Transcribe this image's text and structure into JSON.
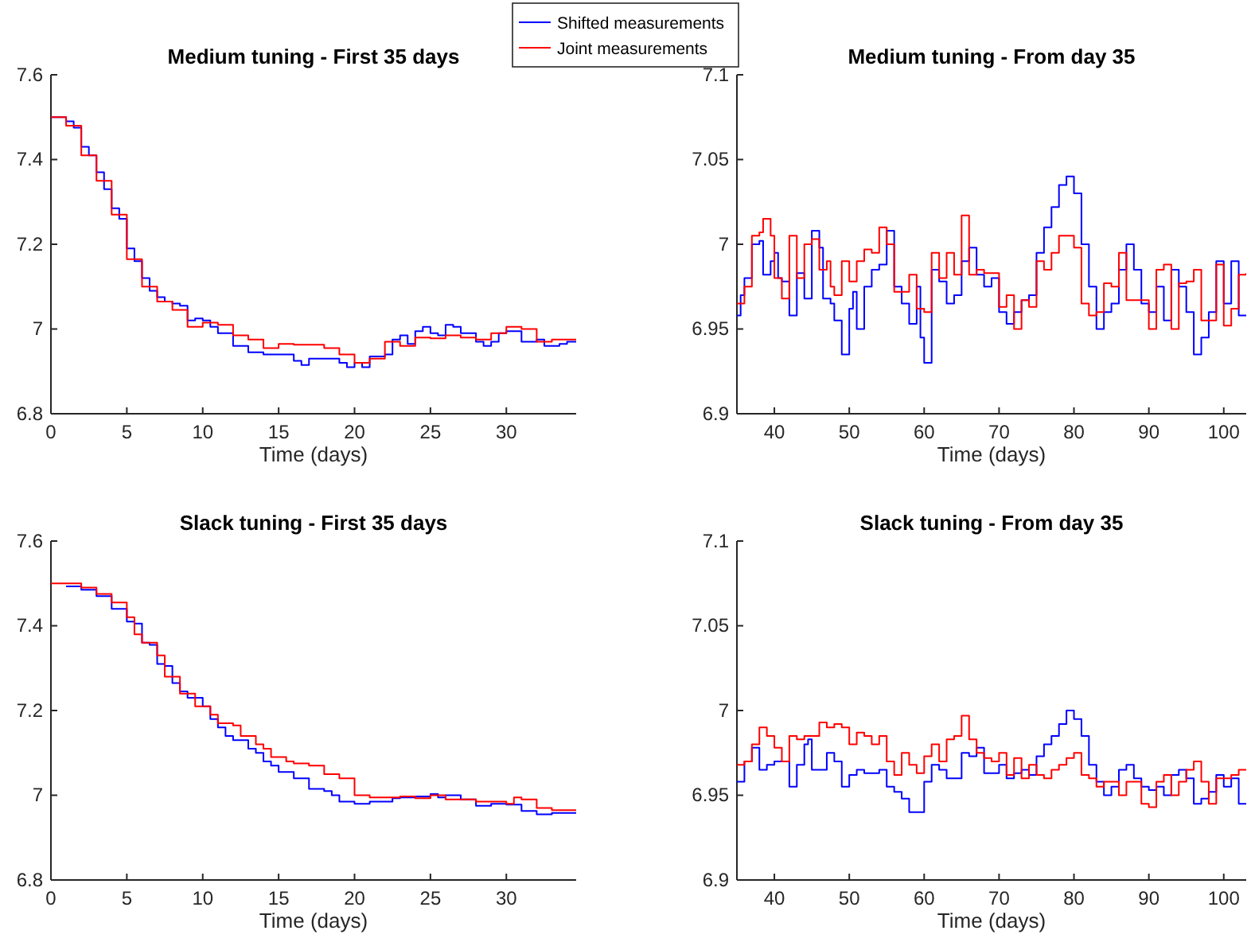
{
  "chart_data": [
    {
      "type": "step",
      "title": "Medium tuning - First 35 days",
      "xlabel": "Time (days)",
      "xlim": [
        0,
        34.6
      ],
      "xticks": [
        0,
        5,
        10,
        15,
        20,
        25,
        30
      ],
      "ylim": [
        6.8,
        7.6
      ],
      "yticks": [
        6.8,
        7,
        7.2,
        7.4,
        7.6
      ],
      "legend": "top right",
      "series": [
        {
          "name": "Shifted measurements",
          "color": "#0000ff",
          "x": [
            0,
            1,
            1.5,
            2,
            2.5,
            3,
            3.5,
            4,
            4.5,
            5,
            5.5,
            6,
            6.5,
            7,
            7.5,
            8,
            8.5,
            9,
            9.5,
            10,
            10.5,
            11,
            12,
            13,
            14,
            15,
            16,
            16.5,
            17,
            18,
            19,
            19.5,
            20,
            20.5,
            21,
            22,
            22.5,
            23,
            23.5,
            24,
            24.5,
            25,
            25.5,
            26,
            26.5,
            27,
            28,
            28.5,
            29,
            29.5,
            30,
            31,
            32,
            32.5,
            33.5,
            34,
            34.6
          ],
          "values": [
            7.5,
            7.49,
            7.475,
            7.43,
            7.41,
            7.37,
            7.33,
            7.285,
            7.26,
            7.19,
            7.16,
            7.12,
            7.09,
            7.075,
            7.065,
            7.06,
            7.055,
            7.02,
            7.025,
            7.02,
            7.005,
            6.99,
            6.96,
            6.945,
            6.94,
            6.94,
            6.925,
            6.915,
            6.93,
            6.93,
            6.92,
            6.91,
            6.92,
            6.91,
            6.935,
            6.94,
            6.975,
            6.985,
            6.965,
            6.995,
            7.005,
            6.99,
            6.985,
            7.01,
            7.005,
            6.99,
            6.97,
            6.96,
            6.97,
            6.99,
            6.995,
            6.97,
            6.975,
            6.96,
            6.965,
            6.97,
            6.97
          ]
        },
        {
          "name": "Joint measurements",
          "color": "#ff0000",
          "x": [
            0,
            1,
            2,
            3,
            4,
            5,
            6,
            7,
            8,
            9,
            10,
            11,
            12,
            13,
            14,
            15,
            16,
            18,
            19,
            20,
            21,
            22,
            23,
            24,
            25,
            26,
            27,
            28,
            29,
            30,
            31,
            32,
            33,
            34.6
          ],
          "values": [
            7.5,
            7.48,
            7.41,
            7.35,
            7.27,
            7.165,
            7.1,
            7.065,
            7.045,
            7.005,
            7.015,
            7.01,
            6.985,
            6.975,
            6.955,
            6.965,
            6.963,
            6.955,
            6.94,
            6.92,
            6.93,
            6.97,
            6.96,
            6.98,
            6.978,
            6.985,
            6.98,
            6.975,
            6.99,
            7.005,
            7,
            6.97,
            6.975,
            6.975
          ]
        }
      ]
    },
    {
      "type": "step",
      "title": "Medium tuning - From day 35",
      "xlabel": "Time (days)",
      "xlim": [
        35,
        103
      ],
      "xticks": [
        40,
        50,
        60,
        70,
        80,
        90,
        100
      ],
      "ylim": [
        6.9,
        7.1
      ],
      "yticks": [
        6.9,
        6.95,
        7,
        7.05,
        7.1
      ],
      "series": [
        {
          "color": "#0000ff",
          "x": [
            35,
            35.5,
            36,
            37,
            38,
            38.5,
            39.5,
            40,
            40.5,
            41,
            42,
            43,
            44,
            45,
            46,
            46.5,
            47.5,
            48,
            49,
            50,
            50.5,
            51,
            52,
            53,
            54,
            55,
            56,
            57,
            58,
            59,
            59.5,
            60,
            61,
            62,
            63,
            64,
            65,
            66,
            67,
            68,
            69,
            70,
            71,
            72,
            73,
            74,
            75,
            76,
            77,
            78,
            79,
            80,
            81,
            82,
            83,
            84,
            85,
            86,
            87,
            88,
            89,
            90,
            91,
            92,
            93,
            94,
            95,
            96,
            97,
            98,
            99,
            100,
            101,
            102,
            103
          ],
          "values": [
            6.958,
            6.97,
            6.98,
            7,
            7.002,
            6.982,
            6.99,
            6.995,
            6.98,
            6.978,
            6.958,
            6.983,
            6.968,
            7.008,
            6.998,
            6.968,
            6.965,
            6.955,
            6.935,
            6.962,
            6.972,
            6.95,
            6.975,
            6.985,
            6.988,
            7.008,
            6.975,
            6.965,
            6.953,
            6.975,
            6.945,
            6.93,
            6.985,
            6.978,
            6.965,
            6.97,
            6.99,
            6.998,
            6.982,
            6.975,
            6.98,
            6.96,
            6.953,
            6.96,
            6.967,
            6.97,
            6.995,
            7.01,
            7.022,
            7.035,
            7.04,
            7.03,
            7,
            6.975,
            6.95,
            6.96,
            6.965,
            6.985,
            7,
            6.985,
            6.965,
            6.96,
            6.975,
            6.955,
            6.985,
            6.975,
            6.96,
            6.935,
            6.945,
            6.96,
            6.99,
            6.965,
            6.99,
            6.958,
            6.958
          ]
        },
        {
          "color": "#ff0000",
          "x": [
            35,
            36,
            37,
            38,
            38.5,
            39.5,
            40,
            41,
            42,
            43,
            44,
            45,
            46,
            47,
            47.5,
            48,
            49,
            50,
            51,
            52,
            53,
            54,
            55,
            56,
            57,
            58,
            59,
            60,
            61,
            62,
            63,
            64,
            65,
            66,
            67,
            68,
            69,
            70,
            71,
            72,
            73,
            74,
            75,
            76,
            77,
            78,
            79,
            80,
            81,
            82,
            83,
            84,
            85,
            86,
            87,
            88,
            89,
            90,
            91,
            92,
            93,
            94,
            95,
            96,
            97,
            98,
            99,
            100,
            101,
            102,
            103
          ],
          "values": [
            6.965,
            6.975,
            7.005,
            7.007,
            7.015,
            7.005,
            6.98,
            6.968,
            7.005,
            6.98,
            7,
            7.003,
            6.985,
            6.99,
            6.975,
            6.97,
            6.99,
            6.978,
            6.99,
            6.997,
            6.995,
            7.01,
            7,
            6.972,
            6.972,
            6.982,
            6.962,
            6.96,
            6.995,
            6.98,
            6.995,
            6.982,
            7.017,
            6.982,
            6.985,
            6.983,
            6.983,
            6.963,
            6.97,
            6.95,
            6.967,
            6.963,
            6.99,
            6.985,
            6.995,
            7.005,
            7.005,
            6.998,
            6.965,
            6.958,
            6.96,
            6.977,
            6.975,
            6.995,
            6.967,
            6.967,
            6.967,
            6.95,
            6.985,
            6.988,
            6.95,
            6.977,
            6.978,
            6.985,
            6.955,
            6.955,
            6.988,
            6.952,
            6.962,
            6.982,
            6.983
          ]
        }
      ]
    },
    {
      "type": "step",
      "title": "Slack tuning - First 35 days",
      "xlabel": "Time (days)",
      "xlim": [
        0,
        34.6
      ],
      "xticks": [
        0,
        5,
        10,
        15,
        20,
        25,
        30
      ],
      "ylim": [
        6.8,
        7.6
      ],
      "yticks": [
        6.8,
        7,
        7.2,
        7.4,
        7.6
      ],
      "series": [
        {
          "color": "#0000ff",
          "x": [
            1,
            2,
            3,
            4,
            5,
            5.5,
            6,
            6.5,
            7,
            7.5,
            8,
            8.5,
            9,
            10,
            10.5,
            11,
            11.5,
            12,
            13,
            13.5,
            14,
            14.5,
            15,
            16,
            17,
            18,
            18.5,
            19,
            20,
            21,
            22,
            22.5,
            23,
            24,
            25,
            25.5,
            26,
            27,
            28,
            29,
            30,
            31,
            32,
            33,
            34.6
          ],
          "values": [
            7.493,
            7.485,
            7.47,
            7.44,
            7.41,
            7.405,
            7.36,
            7.355,
            7.31,
            7.305,
            7.265,
            7.245,
            7.23,
            7.21,
            7.18,
            7.16,
            7.14,
            7.13,
            7.11,
            7.1,
            7.08,
            7.07,
            7.055,
            7.04,
            7.015,
            7.01,
            7,
            6.985,
            6.98,
            6.985,
            6.985,
            6.993,
            6.995,
            6.997,
            7.003,
            6.995,
            7,
            6.99,
            6.975,
            6.98,
            6.978,
            6.963,
            6.955,
            6.958,
            6.958
          ]
        },
        {
          "color": "#ff0000",
          "x": [
            0,
            1,
            2,
            3,
            4,
            5,
            5.5,
            6,
            7,
            7.5,
            8,
            8.5,
            9,
            9.5,
            10.5,
            11,
            12,
            12.5,
            13.5,
            14,
            14.5,
            15.5,
            16,
            17,
            18,
            19,
            20,
            21,
            22,
            23,
            24,
            25,
            26,
            27,
            28,
            29,
            30,
            30.5,
            31,
            32,
            33,
            34.6
          ],
          "values": [
            7.5,
            7.5,
            7.49,
            7.475,
            7.455,
            7.42,
            7.38,
            7.36,
            7.33,
            7.28,
            7.28,
            7.24,
            7.24,
            7.21,
            7.19,
            7.17,
            7.165,
            7.14,
            7.12,
            7.11,
            7.09,
            7.08,
            7.075,
            7.07,
            7.05,
            7.04,
            7,
            6.995,
            6.995,
            6.997,
            6.993,
            7,
            6.99,
            6.99,
            6.985,
            6.985,
            6.98,
            6.995,
            6.99,
            6.97,
            6.965,
            6.965
          ]
        }
      ]
    },
    {
      "type": "step",
      "title": "Slack tuning - From day 35",
      "xlabel": "Time (days)",
      "xlim": [
        35,
        103
      ],
      "xticks": [
        40,
        50,
        60,
        70,
        80,
        90,
        100
      ],
      "ylim": [
        6.9,
        7.1
      ],
      "yticks": [
        6.9,
        6.95,
        7,
        7.05,
        7.1
      ],
      "series": [
        {
          "color": "#0000ff",
          "x": [
            35,
            36,
            37,
            38,
            39,
            40,
            41,
            42,
            43,
            44,
            44.5,
            45,
            46,
            47,
            48,
            49,
            50,
            51,
            52,
            53,
            54,
            55,
            56,
            57,
            58,
            59,
            60,
            61,
            62,
            63,
            64,
            65,
            66,
            67,
            68,
            69,
            70,
            71,
            72,
            73,
            74,
            75,
            76,
            77,
            78,
            79,
            80,
            81,
            82,
            83,
            84,
            85,
            86,
            87,
            88,
            89,
            90,
            91,
            92,
            93,
            94,
            95,
            96,
            97,
            98,
            99,
            100,
            101,
            102,
            103
          ],
          "values": [
            6.958,
            6.97,
            6.978,
            6.965,
            6.968,
            6.97,
            6.97,
            6.955,
            6.968,
            6.98,
            6.983,
            6.965,
            6.965,
            6.975,
            6.97,
            6.955,
            6.962,
            6.965,
            6.963,
            6.963,
            6.965,
            6.955,
            6.952,
            6.948,
            6.94,
            6.94,
            6.958,
            6.968,
            6.965,
            6.96,
            6.96,
            6.975,
            6.973,
            6.978,
            6.963,
            6.963,
            6.968,
            6.96,
            6.963,
            6.965,
            6.962,
            6.973,
            6.98,
            6.985,
            6.992,
            7,
            6.995,
            6.985,
            6.968,
            6.958,
            6.95,
            6.955,
            6.965,
            6.968,
            6.96,
            6.955,
            6.953,
            6.955,
            6.95,
            6.962,
            6.965,
            6.96,
            6.945,
            6.948,
            6.952,
            6.962,
            6.955,
            6.96,
            6.945,
            6.945
          ]
        },
        {
          "color": "#ff0000",
          "x": [
            35,
            36,
            37,
            38,
            39,
            40,
            41,
            42,
            43,
            44,
            45,
            46,
            47,
            48,
            49,
            50,
            51,
            52,
            53,
            54,
            55,
            56,
            57,
            58,
            59,
            60,
            61,
            62,
            63,
            64,
            65,
            66,
            67,
            68,
            69,
            70,
            71,
            72,
            73,
            74,
            75,
            76,
            77,
            78,
            79,
            80,
            81,
            82,
            83,
            84,
            85,
            86,
            87,
            88,
            89,
            90,
            91,
            92,
            93,
            94,
            95,
            96,
            97,
            98,
            99,
            100,
            101,
            102,
            103
          ],
          "values": [
            6.968,
            6.97,
            6.98,
            6.99,
            6.985,
            6.978,
            6.97,
            6.985,
            6.983,
            6.985,
            6.985,
            6.993,
            6.99,
            6.992,
            6.99,
            6.98,
            6.987,
            6.985,
            6.98,
            6.985,
            6.97,
            6.962,
            6.975,
            6.968,
            6.963,
            6.973,
            6.98,
            6.97,
            6.983,
            6.985,
            6.997,
            6.983,
            6.975,
            6.972,
            6.97,
            6.975,
            6.962,
            6.972,
            6.96,
            6.968,
            6.962,
            6.96,
            6.965,
            6.968,
            6.972,
            6.975,
            6.962,
            6.96,
            6.955,
            6.958,
            6.958,
            6.95,
            6.958,
            6.958,
            6.945,
            6.943,
            6.958,
            6.962,
            6.95,
            6.958,
            6.965,
            6.97,
            6.958,
            6.945,
            6.96,
            6.96,
            6.962,
            6.965,
            6.965
          ]
        }
      ]
    }
  ]
}
